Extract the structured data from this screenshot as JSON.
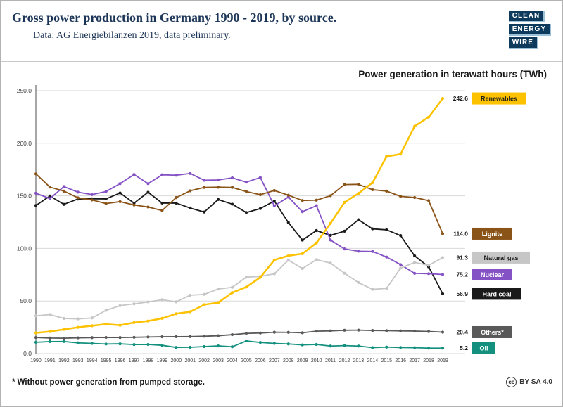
{
  "header": {
    "title": "Gross power production in Germany 1990 - 2019, by source.",
    "subtitle": "Data: AG Energiebilanzen 2019, data preliminary.",
    "logo": {
      "lines": [
        "CLEAN",
        "ENERGY",
        "WIRE"
      ]
    }
  },
  "chart_data": {
    "type": "line",
    "title": "Power generation in terawatt hours (TWh)",
    "xlabel": "",
    "ylabel": "TWh",
    "ylim": [
      0,
      250
    ],
    "grid": true,
    "legend_position": "right",
    "x": [
      "1990",
      "1991",
      "1992",
      "1993",
      "1994",
      "1995",
      "1996",
      "1997",
      "1998",
      "1999",
      "2000",
      "2001",
      "2002",
      "2003",
      "2004",
      "2005",
      "2006",
      "2007",
      "2008",
      "2009",
      "2010",
      "2011",
      "2012",
      "2013",
      "2014",
      "2015",
      "2016",
      "2017",
      "2018",
      "2019"
    ],
    "y_ticks": [
      0,
      50,
      100,
      150,
      200,
      250
    ],
    "y_tick_labels": [
      "0.0",
      "50.0",
      "100.0",
      "150.0",
      "200.0",
      "250.0"
    ],
    "series": [
      {
        "name": "Renewables",
        "end_label": "242.6",
        "color": "#fcc200",
        "chip_text": "#1a1a1a",
        "width": 2.5,
        "values": [
          19.7,
          21.0,
          23.0,
          25.0,
          26.5,
          28.0,
          27.0,
          29.5,
          31.0,
          33.5,
          37.9,
          39.8,
          46.5,
          48.5,
          58.0,
          63.3,
          72.5,
          89.0,
          93.0,
          95.0,
          105.2,
          123.8,
          143.8,
          152.3,
          162.5,
          187.4,
          189.7,
          216.2,
          224.8,
          242.6
        ]
      },
      {
        "name": "Lignite",
        "end_label": "114.0",
        "color": "#8a5317",
        "chip_text": "#ffffff",
        "width": 1.8,
        "values": [
          170.9,
          158.3,
          154.5,
          148.1,
          146.1,
          142.6,
          144.5,
          141.3,
          139.4,
          136.0,
          148.3,
          154.8,
          158.0,
          158.2,
          158.0,
          154.1,
          151.1,
          155.1,
          150.6,
          145.6,
          145.9,
          150.1,
          160.7,
          160.9,
          155.8,
          154.5,
          149.5,
          148.4,
          145.5,
          114.0
        ]
      },
      {
        "name": "Natural gas",
        "end_label": "91.3",
        "color": "#c6c6c6",
        "chip_text": "#1a1a1a",
        "width": 1.8,
        "values": [
          35.9,
          37.1,
          33.4,
          33.0,
          33.9,
          41.1,
          45.6,
          47.3,
          49.1,
          51.2,
          49.2,
          55.5,
          56.3,
          61.4,
          63.0,
          72.7,
          73.4,
          75.9,
          88.9,
          80.9,
          89.3,
          86.1,
          76.4,
          67.5,
          61.1,
          62.0,
          81.3,
          86.7,
          83.9,
          91.3
        ]
      },
      {
        "name": "Nuclear",
        "end_label": "75.2",
        "color": "#8452c5",
        "chip_text": "#ffffff",
        "width": 1.8,
        "values": [
          152.5,
          147.4,
          158.8,
          153.5,
          151.2,
          154.1,
          161.6,
          170.3,
          161.6,
          170.0,
          169.6,
          171.3,
          164.8,
          165.1,
          167.1,
          163.0,
          167.4,
          140.5,
          148.8,
          134.9,
          140.6,
          108.0,
          99.5,
          97.3,
          97.1,
          91.8,
          84.6,
          76.3,
          76.0,
          75.2
        ]
      },
      {
        "name": "Hard coal",
        "end_label": "56.9",
        "color": "#1a1a1a",
        "chip_text": "#ffffff",
        "width": 1.8,
        "values": [
          140.8,
          149.8,
          141.9,
          147.0,
          147.2,
          147.1,
          152.7,
          143.1,
          153.4,
          143.1,
          143.1,
          138.4,
          134.6,
          146.5,
          142.1,
          134.1,
          137.9,
          145.1,
          124.6,
          107.9,
          117.0,
          112.4,
          116.4,
          127.3,
          118.6,
          117.7,
          112.2,
          92.9,
          82.5,
          56.9
        ]
      },
      {
        "name": "Others*",
        "end_label": "20.4",
        "color": "#595959",
        "chip_text": "#ffffff",
        "width": 1.8,
        "values": [
          15.3,
          14.8,
          14.6,
          15.0,
          15.2,
          15.4,
          15.3,
          15.5,
          15.8,
          16.0,
          16.1,
          16.2,
          16.5,
          17.0,
          18.0,
          19.2,
          19.6,
          20.3,
          20.2,
          19.8,
          21.3,
          21.6,
          22.2,
          22.3,
          22.0,
          21.8,
          21.6,
          21.4,
          21.0,
          20.4
        ]
      },
      {
        "name": "Oil",
        "end_label": "5.2",
        "color": "#14917e",
        "chip_text": "#ffffff",
        "width": 1.8,
        "values": [
          10.8,
          11.4,
          11.5,
          10.2,
          9.7,
          9.1,
          9.3,
          8.6,
          8.7,
          7.9,
          5.9,
          6.0,
          6.7,
          7.3,
          6.5,
          12.0,
          10.6,
          9.7,
          9.2,
          8.3,
          8.7,
          7.2,
          7.6,
          7.2,
          5.7,
          6.2,
          5.8,
          5.6,
          5.2,
          5.2
        ]
      }
    ]
  },
  "footnote": "* Without power generation from pumped storage.",
  "license": {
    "icon": "cc",
    "text": "BY SA 4.0"
  }
}
